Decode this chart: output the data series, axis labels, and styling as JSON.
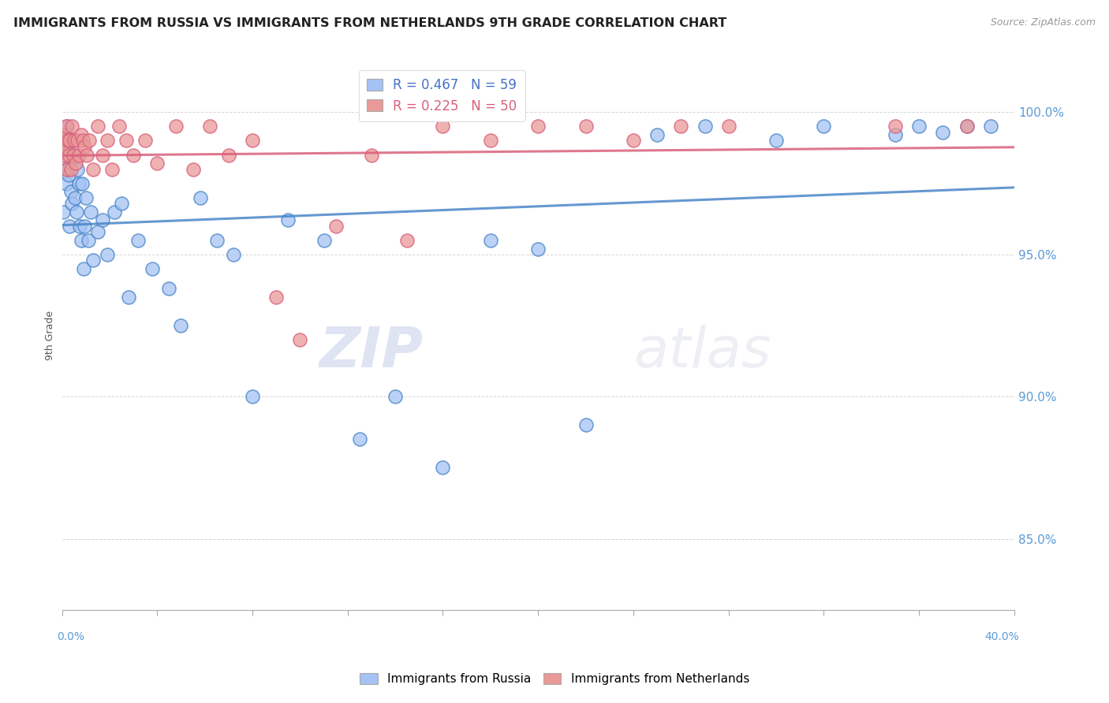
{
  "title": "IMMIGRANTS FROM RUSSIA VS IMMIGRANTS FROM NETHERLANDS 9TH GRADE CORRELATION CHART",
  "source_text": "Source: ZipAtlas.com",
  "ylabel": "9th Grade",
  "xlim": [
    0.0,
    40.0
  ],
  "ylim": [
    82.5,
    101.8
  ],
  "legend_blue_label": "R = 0.467   N = 59",
  "legend_pink_label": "R = 0.225   N = 50",
  "blue_color": "#a4c2f4",
  "pink_color": "#ea9999",
  "blue_line_color": "#4a86c8",
  "pink_line_color": "#d9607a",
  "watermark_color": "#dde4f0",
  "russia_x": [
    0.05,
    0.08,
    0.12,
    0.15,
    0.18,
    0.2,
    0.22,
    0.25,
    0.28,
    0.3,
    0.35,
    0.38,
    0.42,
    0.45,
    0.5,
    0.55,
    0.6,
    0.65,
    0.7,
    0.75,
    0.8,
    0.85,
    0.9,
    0.95,
    1.0,
    1.1,
    1.2,
    1.3,
    1.5,
    1.7,
    1.9,
    2.2,
    2.5,
    2.8,
    3.2,
    3.8,
    4.5,
    5.0,
    5.8,
    6.5,
    7.2,
    8.0,
    9.5,
    11.0,
    12.5,
    14.0,
    16.0,
    18.0,
    20.0,
    22.0,
    25.0,
    27.0,
    30.0,
    32.0,
    35.0,
    36.0,
    37.0,
    38.0,
    39.0
  ],
  "russia_y": [
    96.5,
    98.2,
    99.2,
    98.8,
    97.5,
    99.5,
    98.0,
    99.0,
    97.8,
    96.0,
    98.5,
    97.2,
    96.8,
    99.0,
    98.5,
    97.0,
    96.5,
    98.0,
    97.5,
    96.0,
    95.5,
    97.5,
    94.5,
    96.0,
    97.0,
    95.5,
    96.5,
    94.8,
    95.8,
    96.2,
    95.0,
    96.5,
    96.8,
    93.5,
    95.5,
    94.5,
    93.8,
    92.5,
    97.0,
    95.5,
    95.0,
    90.0,
    96.2,
    95.5,
    88.5,
    90.0,
    87.5,
    95.5,
    95.2,
    89.0,
    99.2,
    99.5,
    99.0,
    99.5,
    99.2,
    99.5,
    99.3,
    99.5,
    99.5
  ],
  "netherlands_x": [
    0.05,
    0.08,
    0.12,
    0.15,
    0.18,
    0.22,
    0.25,
    0.28,
    0.32,
    0.38,
    0.42,
    0.48,
    0.52,
    0.58,
    0.65,
    0.72,
    0.8,
    0.88,
    0.95,
    1.05,
    1.15,
    1.3,
    1.5,
    1.7,
    1.9,
    2.1,
    2.4,
    2.7,
    3.0,
    3.5,
    4.0,
    4.8,
    5.5,
    6.2,
    7.0,
    8.0,
    9.0,
    10.0,
    11.5,
    13.0,
    14.5,
    16.0,
    18.0,
    20.0,
    22.0,
    24.0,
    26.0,
    28.0,
    35.0,
    38.0
  ],
  "netherlands_y": [
    99.0,
    98.5,
    99.2,
    98.8,
    99.5,
    98.0,
    99.0,
    98.5,
    99.0,
    98.0,
    99.5,
    98.5,
    99.0,
    98.2,
    99.0,
    98.5,
    99.2,
    99.0,
    98.8,
    98.5,
    99.0,
    98.0,
    99.5,
    98.5,
    99.0,
    98.0,
    99.5,
    99.0,
    98.5,
    99.0,
    98.2,
    99.5,
    98.0,
    99.5,
    98.5,
    99.0,
    93.5,
    92.0,
    96.0,
    98.5,
    95.5,
    99.5,
    99.0,
    99.5,
    99.5,
    99.0,
    99.5,
    99.5,
    99.5,
    99.5
  ]
}
